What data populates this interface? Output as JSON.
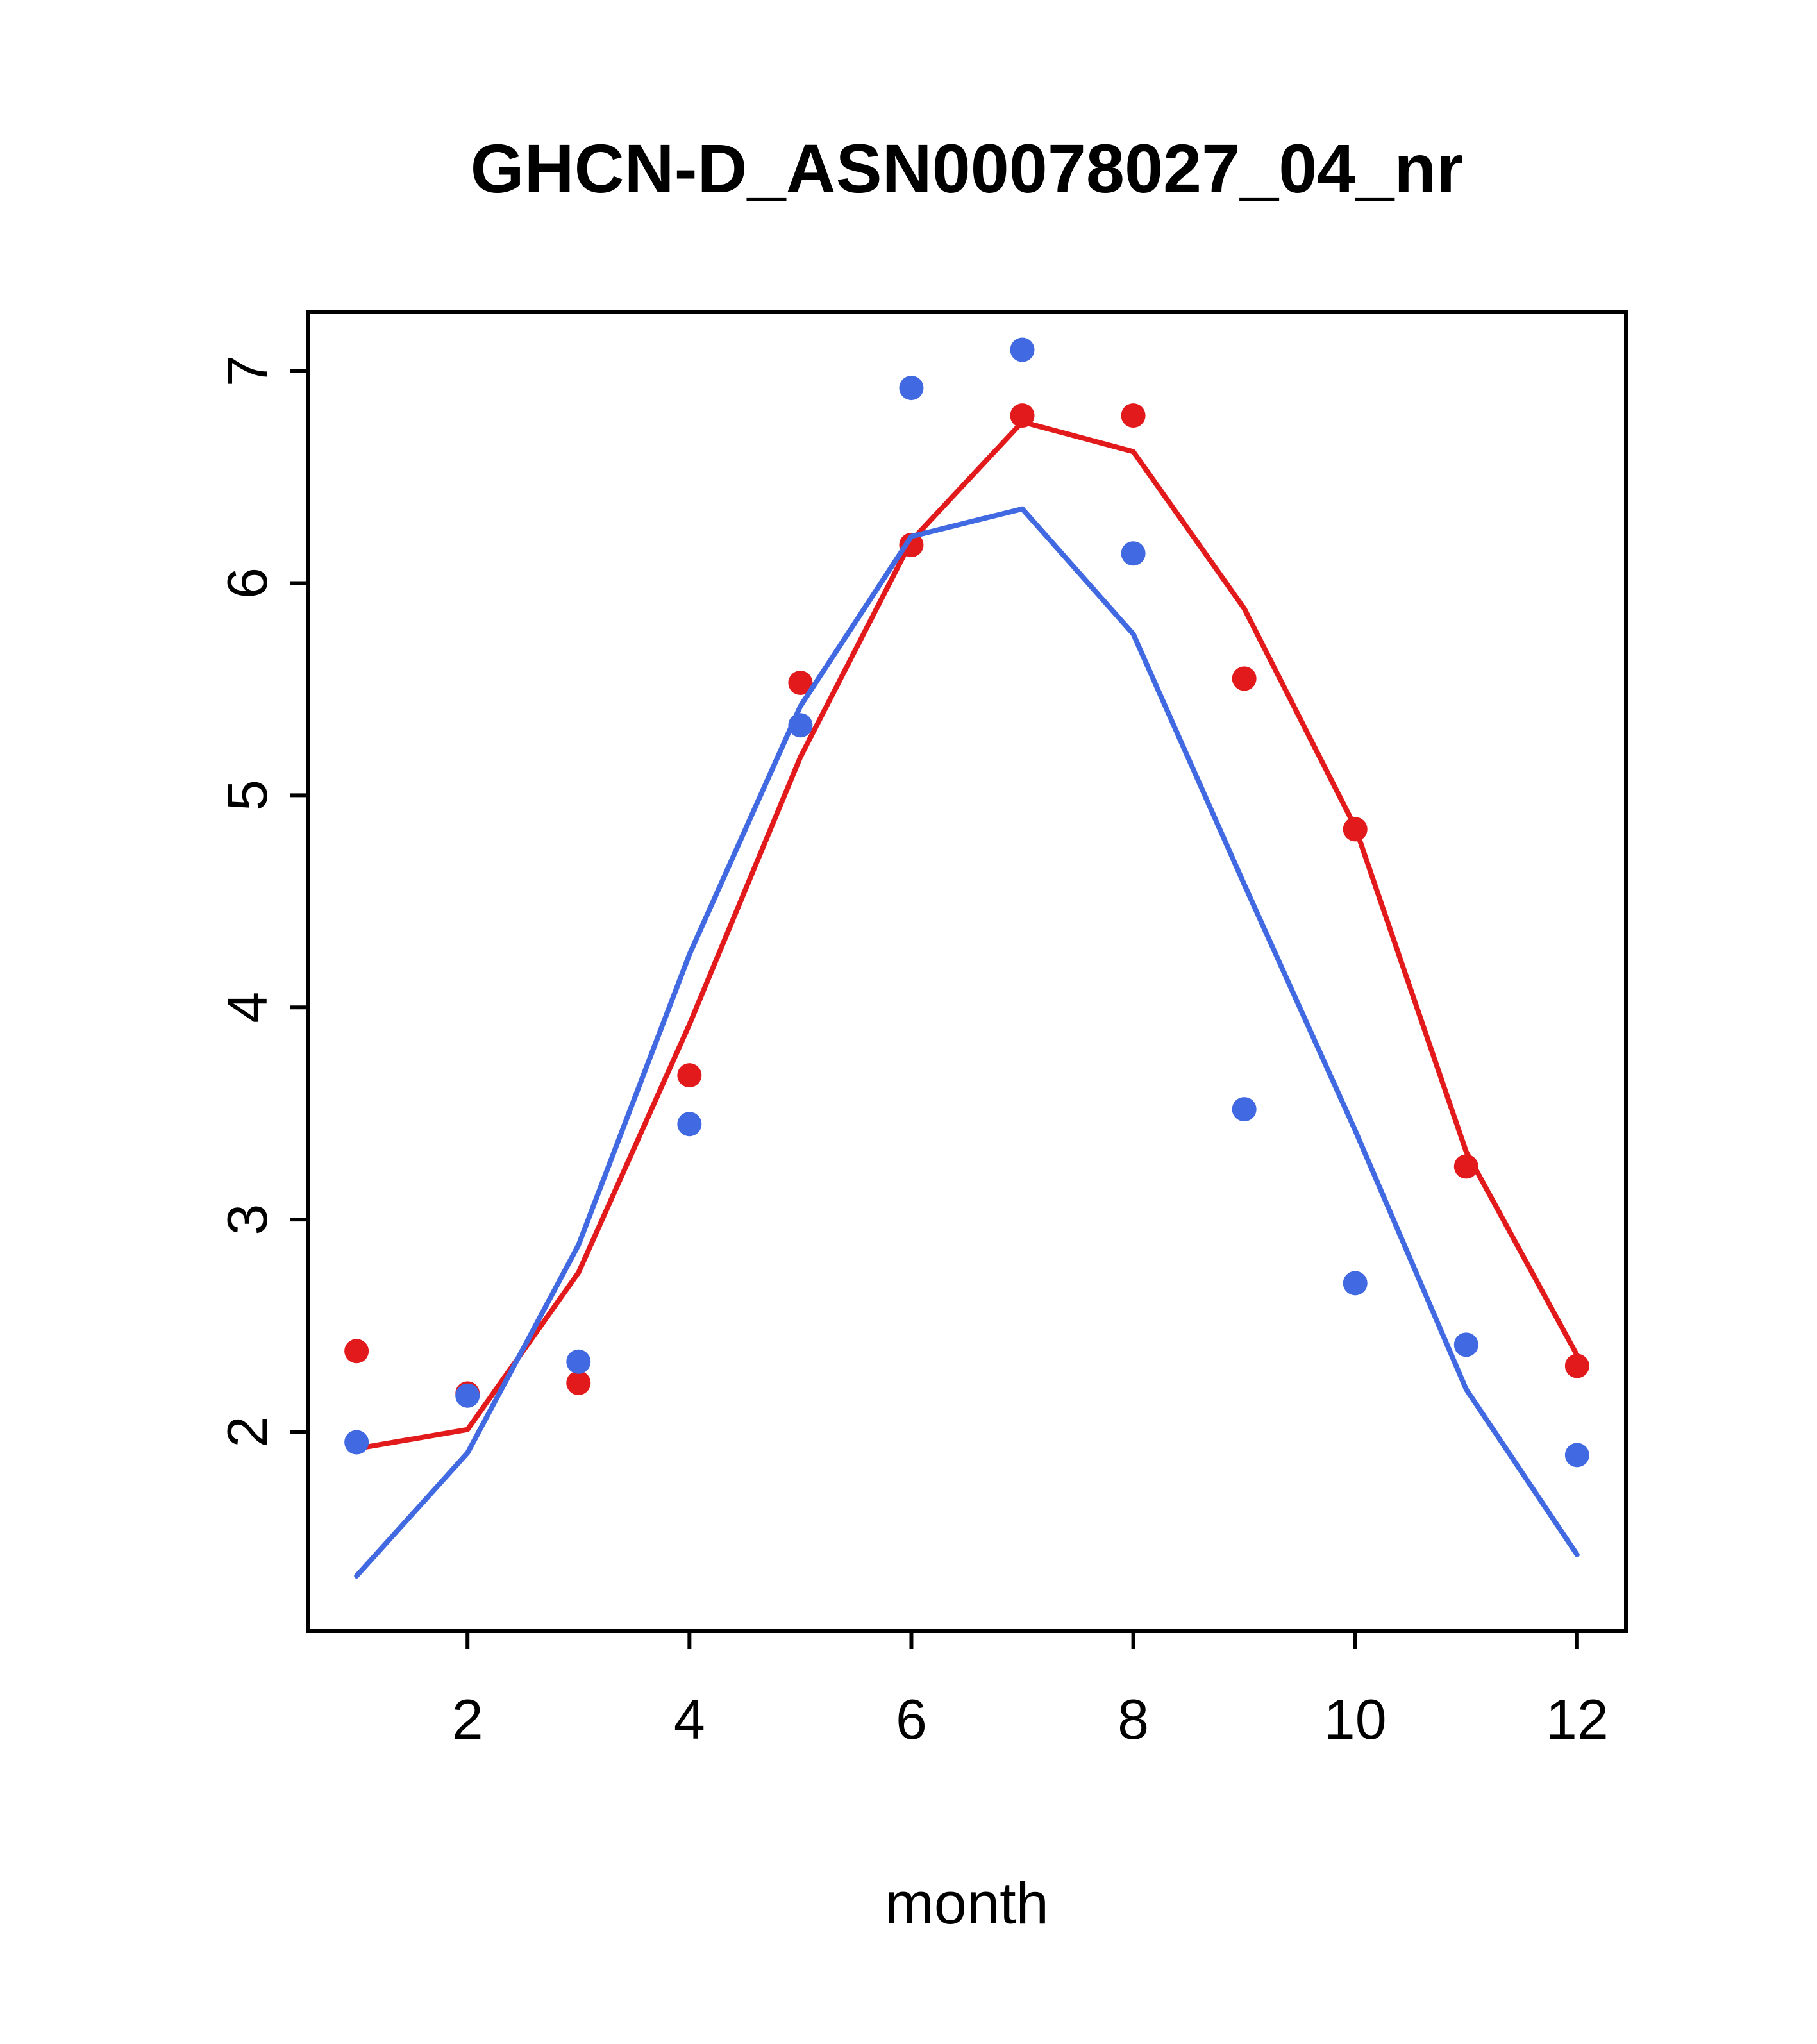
{
  "chart_data": {
    "type": "line",
    "title": "GHCN-D_ASN00078027_04_nr",
    "xlabel": "month",
    "ylabel": "",
    "xlim": [
      0.56,
      12.44
    ],
    "ylim": [
      1.06,
      7.28
    ],
    "x_ticks": [
      2,
      4,
      6,
      8,
      10,
      12
    ],
    "y_ticks": [
      2,
      3,
      4,
      5,
      6,
      7
    ],
    "x": [
      1,
      2,
      3,
      4,
      5,
      6,
      7,
      8,
      9,
      10,
      11,
      12
    ],
    "grid": false,
    "legend": null,
    "colors": {
      "red": "#e31a1c",
      "blue": "#4169e1"
    },
    "series": [
      {
        "name": "red-points",
        "style": "points",
        "color": "#e31a1c",
        "values": [
          2.38,
          2.18,
          2.23,
          3.68,
          5.53,
          6.18,
          6.79,
          6.79,
          5.55,
          4.84,
          3.25,
          2.31
        ]
      },
      {
        "name": "red-line",
        "style": "line",
        "color": "#e31a1c",
        "values": [
          1.92,
          2.01,
          2.75,
          3.92,
          5.18,
          6.2,
          6.76,
          6.62,
          5.88,
          4.85,
          3.32,
          2.36
        ]
      },
      {
        "name": "blue-points",
        "style": "points",
        "color": "#4169e1",
        "values": [
          1.95,
          2.17,
          2.33,
          3.45,
          5.33,
          6.92,
          7.1,
          6.14,
          3.52,
          2.7,
          2.41,
          1.89
        ]
      },
      {
        "name": "blue-line",
        "style": "line",
        "color": "#4169e1",
        "values": [
          1.32,
          1.9,
          2.88,
          4.25,
          5.42,
          6.22,
          6.35,
          5.76,
          4.58,
          3.42,
          2.2,
          1.42
        ]
      }
    ]
  }
}
